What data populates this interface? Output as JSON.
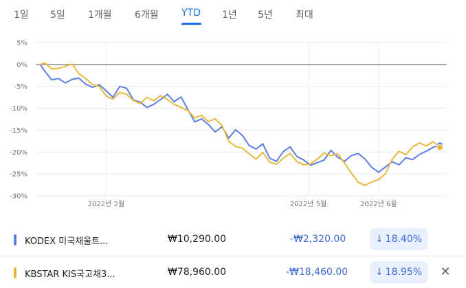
{
  "range_tabs": [
    "1일",
    "5일",
    "1개월",
    "6개월",
    "YTD",
    "1년",
    "5년",
    "최대"
  ],
  "active_tab": "YTD",
  "chart_data": {
    "type": "line",
    "x_range": [
      "2022-01-01",
      "2022-07-01"
    ],
    "ylim": [
      -30,
      5
    ],
    "y_ticks": [
      "5%",
      "0%",
      "-5%",
      "-10%",
      "-15%",
      "-20%",
      "-25%",
      "-30%"
    ],
    "x_ticks": [
      {
        "date": "2022-02-01",
        "label": "2022년 2월"
      },
      {
        "date": "2022-05-01",
        "label": "2022년 5월"
      },
      {
        "date": "2022-06-01",
        "label": "2022년 6월"
      }
    ],
    "baseline": 0,
    "series": [
      {
        "color": "#5b7ee5",
        "points": [
          [
            "2022-01-03",
            0
          ],
          [
            "2022-01-05",
            -1.5
          ],
          [
            "2022-01-08",
            -3.5
          ],
          [
            "2022-01-11",
            -3.2
          ],
          [
            "2022-01-14",
            -4.2
          ],
          [
            "2022-01-17",
            -3.4
          ],
          [
            "2022-01-20",
            -3.1
          ],
          [
            "2022-01-23",
            -4.5
          ],
          [
            "2022-01-26",
            -5.2
          ],
          [
            "2022-01-29",
            -4.6
          ],
          [
            "2022-02-01",
            -6.0
          ],
          [
            "2022-02-04",
            -7.5
          ],
          [
            "2022-02-07",
            -5.0
          ],
          [
            "2022-02-10",
            -5.4
          ],
          [
            "2022-02-13",
            -8.1
          ],
          [
            "2022-02-16",
            -8.6
          ],
          [
            "2022-02-19",
            -9.8
          ],
          [
            "2022-02-22",
            -9.1
          ],
          [
            "2022-02-25",
            -8.0
          ],
          [
            "2022-02-28",
            -6.8
          ],
          [
            "2022-03-03",
            -8.5
          ],
          [
            "2022-03-06",
            -7.4
          ],
          [
            "2022-03-09",
            -10.3
          ],
          [
            "2022-03-12",
            -13.1
          ],
          [
            "2022-03-15",
            -12.4
          ],
          [
            "2022-03-18",
            -13.7
          ],
          [
            "2022-03-21",
            -15.4
          ],
          [
            "2022-03-24",
            -14.2
          ],
          [
            "2022-03-27",
            -16.8
          ],
          [
            "2022-03-30",
            -14.9
          ],
          [
            "2022-04-02",
            -16.2
          ],
          [
            "2022-04-05",
            -18.5
          ],
          [
            "2022-04-08",
            -19.3
          ],
          [
            "2022-04-11",
            -18.1
          ],
          [
            "2022-04-14",
            -21.4
          ],
          [
            "2022-04-17",
            -22.1
          ],
          [
            "2022-04-20",
            -19.9
          ],
          [
            "2022-04-23",
            -18.8
          ],
          [
            "2022-04-26",
            -21.0
          ],
          [
            "2022-04-29",
            -21.8
          ],
          [
            "2022-05-02",
            -23.0
          ],
          [
            "2022-05-05",
            -22.4
          ],
          [
            "2022-05-08",
            -21.8
          ],
          [
            "2022-05-11",
            -19.6
          ],
          [
            "2022-05-14",
            -21.2
          ],
          [
            "2022-05-17",
            -22.1
          ],
          [
            "2022-05-20",
            -20.8
          ],
          [
            "2022-05-23",
            -20.3
          ],
          [
            "2022-05-26",
            -21.6
          ],
          [
            "2022-05-29",
            -23.5
          ],
          [
            "2022-06-01",
            -24.6
          ],
          [
            "2022-06-04",
            -23.4
          ],
          [
            "2022-06-07",
            -22.2
          ],
          [
            "2022-06-10",
            -22.9
          ],
          [
            "2022-06-13",
            -21.3
          ],
          [
            "2022-06-16",
            -21.7
          ],
          [
            "2022-06-19",
            -20.5
          ],
          [
            "2022-06-22",
            -19.8
          ],
          [
            "2022-06-25",
            -18.9
          ],
          [
            "2022-06-28",
            -18.4
          ]
        ]
      },
      {
        "color": "#e9b83d",
        "points": [
          [
            "2022-01-03",
            0
          ],
          [
            "2022-01-05",
            0.4
          ],
          [
            "2022-01-08",
            -1.0
          ],
          [
            "2022-01-11",
            -0.9
          ],
          [
            "2022-01-14",
            -0.4
          ],
          [
            "2022-01-17",
            0.1
          ],
          [
            "2022-01-20",
            -2.1
          ],
          [
            "2022-01-23",
            -3.2
          ],
          [
            "2022-01-26",
            -4.6
          ],
          [
            "2022-01-29",
            -5.0
          ],
          [
            "2022-02-01",
            -7.2
          ],
          [
            "2022-02-04",
            -7.9
          ],
          [
            "2022-02-07",
            -6.4
          ],
          [
            "2022-02-10",
            -6.8
          ],
          [
            "2022-02-13",
            -8.2
          ],
          [
            "2022-02-16",
            -8.9
          ],
          [
            "2022-02-19",
            -7.5
          ],
          [
            "2022-02-22",
            -8.3
          ],
          [
            "2022-02-25",
            -7.1
          ],
          [
            "2022-02-28",
            -8.0
          ],
          [
            "2022-03-03",
            -9.1
          ],
          [
            "2022-03-06",
            -9.8
          ],
          [
            "2022-03-09",
            -10.5
          ],
          [
            "2022-03-12",
            -12.2
          ],
          [
            "2022-03-15",
            -11.6
          ],
          [
            "2022-03-18",
            -13.0
          ],
          [
            "2022-03-21",
            -12.4
          ],
          [
            "2022-03-24",
            -13.9
          ],
          [
            "2022-03-27",
            -17.5
          ],
          [
            "2022-03-30",
            -18.7
          ],
          [
            "2022-04-02",
            -19.1
          ],
          [
            "2022-04-05",
            -20.4
          ],
          [
            "2022-04-08",
            -21.6
          ],
          [
            "2022-04-11",
            -20.1
          ],
          [
            "2022-04-14",
            -22.3
          ],
          [
            "2022-04-17",
            -22.8
          ],
          [
            "2022-04-20",
            -21.4
          ],
          [
            "2022-04-23",
            -20.3
          ],
          [
            "2022-04-26",
            -22.1
          ],
          [
            "2022-04-29",
            -22.9
          ],
          [
            "2022-05-02",
            -22.7
          ],
          [
            "2022-05-05",
            -21.6
          ],
          [
            "2022-05-08",
            -20.2
          ],
          [
            "2022-05-11",
            -20.8
          ],
          [
            "2022-05-14",
            -20.4
          ],
          [
            "2022-05-17",
            -22.5
          ],
          [
            "2022-05-20",
            -24.8
          ],
          [
            "2022-05-23",
            -26.9
          ],
          [
            "2022-05-26",
            -27.6
          ],
          [
            "2022-05-29",
            -26.8
          ],
          [
            "2022-06-01",
            -26.3
          ],
          [
            "2022-06-04",
            -24.9
          ],
          [
            "2022-06-07",
            -21.6
          ],
          [
            "2022-06-10",
            -19.8
          ],
          [
            "2022-06-13",
            -20.6
          ],
          [
            "2022-06-16",
            -18.8
          ],
          [
            "2022-06-19",
            -17.9
          ],
          [
            "2022-06-22",
            -18.6
          ],
          [
            "2022-06-25",
            -17.6
          ],
          [
            "2022-06-28",
            -18.95
          ]
        ]
      }
    ]
  },
  "legend": [
    {
      "name": "KODEX 미국채울트...",
      "color": "#5b7ee5",
      "price": "₩10,290.00",
      "change": "-₩2,320.00",
      "pct": "18.40%",
      "arrow": "↓"
    },
    {
      "name": "KBSTAR KIS국고채3...",
      "color": "#e9b83d",
      "price": "₩78,960.00",
      "change": "-₩18,460.00",
      "pct": "18.95%",
      "arrow": "↓",
      "close_icon": "✕"
    }
  ]
}
